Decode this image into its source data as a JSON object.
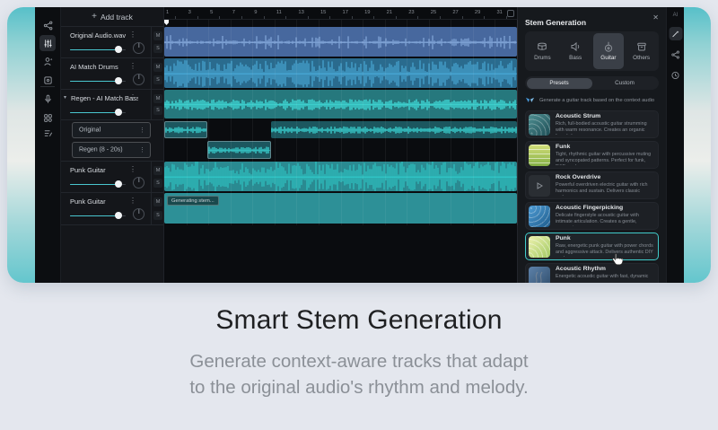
{
  "hero": {
    "title": "Smart Stem Generation",
    "subtitle_lines": [
      "Generate context-aware tracks that adapt",
      "to the original audio's rhythm and melody."
    ]
  },
  "app": {
    "add_track_plus": "+",
    "add_track_label": "Add track",
    "menu_glyph": "⋮",
    "caret_glyph": "▾",
    "mute_label": "M",
    "solo_label": "S",
    "ruler_ticks": [
      "1",
      "3",
      "5",
      "7",
      "9",
      "11",
      "13",
      "15",
      "17",
      "19",
      "21",
      "23",
      "25",
      "27",
      "29",
      "31"
    ],
    "tracks": [
      {
        "name": "Original Audio.wav"
      },
      {
        "name": "AI Match Drums"
      },
      {
        "name": "Regen - AI Match Bass"
      },
      {
        "name": "Punk Guitar"
      },
      {
        "name": "Punk Guitar"
      }
    ],
    "subtracks": [
      {
        "name": "Original"
      },
      {
        "name": "Regen (8 - 20s)"
      }
    ],
    "generating_label": "Generating stem...",
    "right_strip": {
      "ai_label": "AI"
    },
    "stem_panel": {
      "title": "Stem Generation",
      "close_glyph": "✕",
      "categories": [
        {
          "label": "Drums"
        },
        {
          "label": "Bass"
        },
        {
          "label": "Guitar"
        },
        {
          "label": "Others"
        }
      ],
      "selected_category": "Guitar",
      "mode_tabs": [
        {
          "label": "Presets"
        },
        {
          "label": "Custom"
        }
      ],
      "selected_mode": "Presets",
      "description": "Generate a guitar track based on the context audio",
      "presets": [
        {
          "title": "Acoustic Strum",
          "desc": "Rich, full-bodied acoustic guitar strumming with warm resonance. Creates an organic foundation..."
        },
        {
          "title": "Funk",
          "desc": "Tight, rhythmic guitar with percussive muting and syncopated patterns. Perfect for funk, R&B, and..."
        },
        {
          "title": "Rock Overdrive",
          "desc": "Powerful overdriven electric guitar with rich harmonics and sustain. Delivers classic rock..."
        },
        {
          "title": "Acoustic Fingerpicking",
          "desc": "Delicate fingerstyle acoustic guitar with intimate articulation. Creates a gentle, expressive..."
        },
        {
          "title": "Punk",
          "desc": "Raw, energetic punk guitar with power chords and aggressive attack. Delivers authentic DIY punk...",
          "selected": true
        },
        {
          "title": "Acoustic Rhythm",
          "desc": "Energetic acoustic guitar with fast, dynamic"
        }
      ]
    }
  },
  "colors": {
    "accent_teal": "#49c6cf",
    "selected_border": "#41cbca",
    "clip_blue": "#47689e",
    "wave_blue": "#93b8ea",
    "clip_steel": "#2a6b8e",
    "wave_steel": "#54c0f2",
    "clip_teal": "#26787d",
    "wave_teal": "#3fd9d6",
    "clip_sub": "#1c575f",
    "wave_sub": "#38cbcb",
    "clip_punk": "#2a8a91",
    "wave_punk": "#32e4e0",
    "clip_generating": "#2d9097"
  }
}
